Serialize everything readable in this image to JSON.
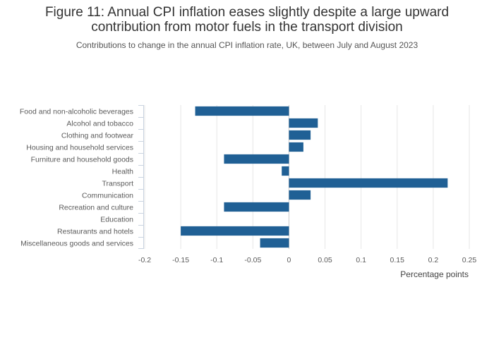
{
  "chart_data": {
    "type": "bar",
    "orientation": "horizontal",
    "title_line1": "Figure 11: Annual CPI inflation eases slightly despite a large upward",
    "title_line2": "contribution from motor fuels in the transport division",
    "subtitle": "Contributions to change in the annual CPI inflation rate, UK, between July and August 2023",
    "xlabel": "Percentage points",
    "xlim": [
      -0.2,
      0.25
    ],
    "xticks": [
      -0.2,
      -0.15,
      -0.1,
      -0.05,
      0,
      0.05,
      0.1,
      0.15,
      0.2,
      0.25
    ],
    "xtick_labels": [
      "-0.2",
      "-0.15",
      "-0.1",
      "-0.05",
      "0",
      "0.05",
      "0.1",
      "0.15",
      "0.2",
      "0.25"
    ],
    "grid": true,
    "bar_color": "#206095",
    "categories": [
      "Food and non-alcoholic beverages",
      "Alcohol and tobacco",
      "Clothing and footwear",
      "Housing and household services",
      "Furniture and household goods",
      "Health",
      "Transport",
      "Communication",
      "Recreation and culture",
      "Education",
      "Restaurants and hotels",
      "Miscellaneous goods and services"
    ],
    "values": [
      -0.13,
      0.04,
      0.03,
      0.02,
      -0.09,
      -0.01,
      0.22,
      0.03,
      -0.09,
      0,
      -0.15,
      -0.04
    ]
  }
}
